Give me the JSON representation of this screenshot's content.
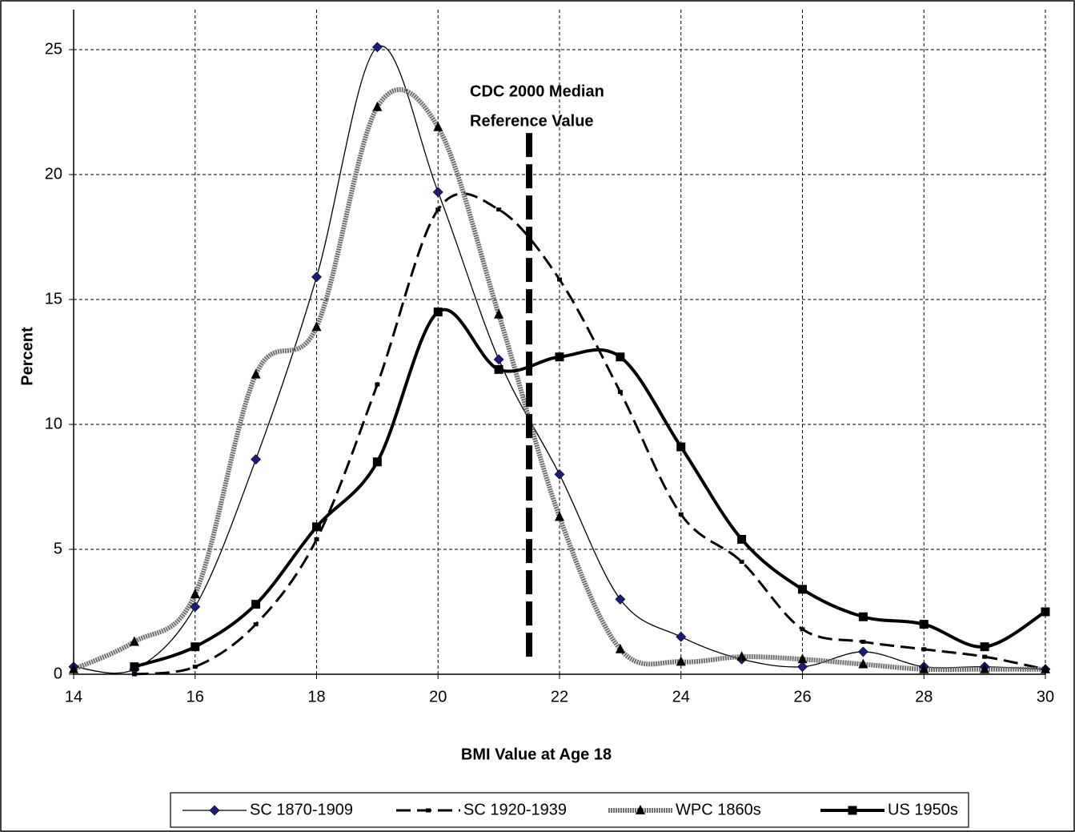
{
  "chart_data": {
    "type": "line",
    "x_label": "BMI Value at Age 18",
    "y_label": "Percent",
    "x": [
      14,
      15,
      16,
      17,
      18,
      19,
      20,
      21,
      22,
      23,
      24,
      25,
      26,
      27,
      28,
      29,
      30
    ],
    "series": [
      {
        "name": "SC 1870-1909",
        "color": "#000000",
        "marker_color": "#1a1a80",
        "marker": "diamond",
        "line_style": "thin",
        "values": [
          0.3,
          0.2,
          2.7,
          8.6,
          15.9,
          25.1,
          19.3,
          12.6,
          8.0,
          3.0,
          1.5,
          0.6,
          0.3,
          0.9,
          0.3,
          0.3,
          0.2
        ]
      },
      {
        "name": "SC 1920-1939",
        "color": "#000000",
        "marker_color": "#000000",
        "marker": "dash",
        "line_style": "dashed",
        "values": [
          null,
          0.0,
          0.3,
          2.0,
          5.4,
          11.6,
          18.6,
          18.6,
          15.8,
          11.3,
          6.4,
          4.5,
          1.8,
          1.3,
          1.0,
          0.7,
          0.2
        ]
      },
      {
        "name": "WPC 1860s",
        "color": "#6e6e6e",
        "marker_color": "#000000",
        "marker": "triangle",
        "line_style": "thick",
        "values": [
          0.2,
          1.3,
          3.2,
          12.0,
          13.9,
          22.7,
          21.9,
          14.4,
          6.3,
          1.0,
          0.5,
          0.7,
          0.6,
          0.4,
          0.2,
          0.2,
          0.2
        ]
      },
      {
        "name": "US 1950s",
        "color": "#000000",
        "marker_color": "#000000",
        "marker": "square",
        "line_style": "bold",
        "values": [
          null,
          0.3,
          1.1,
          2.8,
          5.9,
          8.5,
          14.5,
          12.2,
          12.7,
          12.7,
          9.1,
          5.4,
          3.4,
          2.3,
          2.0,
          1.1,
          2.5
        ]
      }
    ],
    "annotation": {
      "lines": [
        "CDC 2000 Median",
        "Reference Value"
      ],
      "x": 21.5,
      "y_range": [
        0.7,
        21.7
      ]
    },
    "xlim": [
      14,
      30
    ],
    "xticks": [
      14,
      16,
      18,
      20,
      22,
      24,
      26,
      28,
      30
    ],
    "ylim": [
      0,
      25
    ],
    "yticks": [
      0,
      5,
      10,
      15,
      20,
      25
    ],
    "grid": true,
    "smooth": true,
    "legend": "bottom"
  }
}
